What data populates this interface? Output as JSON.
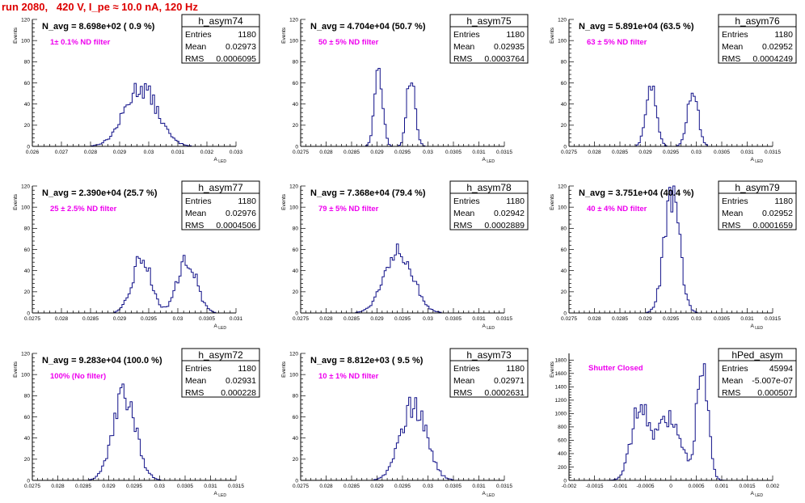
{
  "page_title": "run 2080,   420 V, I_pe ≈ 10.0 nA, 120 Hz",
  "colors": {
    "title": "#dd0000",
    "histogram": "#101088",
    "filter_text": "#ee00ee"
  },
  "chart_data": [
    {
      "type": "histogram",
      "name": "h_asym74",
      "navg": "N_avg = 8.698e+02 ( 0.9 %)",
      "note": "1± 0.1% ND filter",
      "stats": {
        "entries": "1180",
        "mean": "0.02973",
        "rms": "0.0006095"
      },
      "xlabel": "A_LED",
      "ylabel": "Events",
      "xlim": [
        0.026,
        0.033
      ],
      "ylim": [
        0,
        120
      ],
      "xticks": [
        "0.026",
        "0.027",
        "0.028",
        "0.029",
        "0.03",
        "0.031",
        "0.032",
        "0.033"
      ],
      "yticks": [
        0,
        20,
        40,
        60,
        80,
        100,
        120
      ],
      "peaks": [
        {
          "mu": 0.02973,
          "sigma": 0.00056,
          "amp": 56
        }
      ]
    },
    {
      "type": "histogram",
      "name": "h_asym75",
      "navg": "N_avg = 4.704e+04 (50.7 %)",
      "note": "50 ± 5% ND filter",
      "stats": {
        "entries": "1180",
        "mean": "0.02935",
        "rms": "0.0003764"
      },
      "xlabel": "A_LED",
      "ylabel": "Events",
      "xlim": [
        0.0275,
        0.0315
      ],
      "ylim": [
        0,
        120
      ],
      "xticks": [
        "0.0275",
        "0.028",
        "0.0285",
        "0.029",
        "0.0295",
        "0.03",
        "0.0305",
        "0.031",
        "0.0315"
      ],
      "yticks": [
        0,
        20,
        40,
        60,
        80,
        100,
        120
      ],
      "peaks": [
        {
          "mu": 0.02903,
          "sigma": 8e-05,
          "amp": 68
        },
        {
          "mu": 0.02967,
          "sigma": 8e-05,
          "amp": 68
        }
      ]
    },
    {
      "type": "histogram",
      "name": "h_asym76",
      "navg": "N_avg = 5.891e+04 (63.5 %)",
      "note": "63 ± 5% ND filter",
      "stats": {
        "entries": "1180",
        "mean": "0.02952",
        "rms": "0.0004249"
      },
      "xlabel": "A_LED",
      "ylabel": "Events",
      "xlim": [
        0.0275,
        0.0315
      ],
      "ylim": [
        0,
        120
      ],
      "xticks": [
        "0.0275",
        "0.028",
        "0.0285",
        "0.029",
        "0.0295",
        "0.03",
        "0.0305",
        "0.031",
        "0.0315"
      ],
      "yticks": [
        0,
        20,
        40,
        60,
        80,
        100,
        120
      ],
      "peaks": [
        {
          "mu": 0.02911,
          "sigma": 0.0001,
          "amp": 58
        },
        {
          "mu": 0.02993,
          "sigma": 0.0001,
          "amp": 58
        }
      ]
    },
    {
      "type": "histogram",
      "name": "h_asym77",
      "navg": "N_avg = 2.390e+04 (25.7 %)",
      "note": "25 ± 2.5% ND filter",
      "stats": {
        "entries": "1180",
        "mean": "0.02976",
        "rms": "0.0004506"
      },
      "xlabel": "A_LED",
      "ylabel": "Events",
      "xlim": [
        0.0275,
        0.031
      ],
      "ylim": [
        0,
        120
      ],
      "xticks": [
        "0.0275",
        "0.028",
        "0.0285",
        "0.029",
        "0.0295",
        "0.03",
        "0.0305",
        "0.031"
      ],
      "yticks": [
        0,
        20,
        40,
        60,
        80,
        100,
        120
      ],
      "peaks": [
        {
          "mu": 0.02938,
          "sigma": 0.00016,
          "amp": 52
        },
        {
          "mu": 0.03016,
          "sigma": 0.00016,
          "amp": 52
        }
      ]
    },
    {
      "type": "histogram",
      "name": "h_asym78",
      "navg": "N_avg = 7.368e+04 (79.4 %)",
      "note": "79 ± 5% ND filter",
      "stats": {
        "entries": "1180",
        "mean": "0.02942",
        "rms": "0.0002889"
      },
      "xlabel": "A_LED",
      "ylabel": "Events",
      "xlim": [
        0.0275,
        0.0315
      ],
      "ylim": [
        0,
        120
      ],
      "xticks": [
        "0.0275",
        "0.028",
        "0.0285",
        "0.029",
        "0.0295",
        "0.03",
        "0.0305",
        "0.031",
        "0.0315"
      ],
      "yticks": [
        0,
        20,
        40,
        60,
        80,
        100,
        120
      ],
      "peaks": [
        {
          "mu": 0.02942,
          "sigma": 0.00027,
          "amp": 62
        }
      ]
    },
    {
      "type": "histogram",
      "name": "h_asym79",
      "navg": "N_avg = 3.751e+04 (40.4 %)",
      "note": "40 ± 4% ND filter",
      "stats": {
        "entries": "1180",
        "mean": "0.02952",
        "rms": "0.0001659"
      },
      "xlabel": "A_LED",
      "ylabel": "Events",
      "xlim": [
        0.0275,
        0.0315
      ],
      "ylim": [
        0,
        120
      ],
      "xticks": [
        "0.0275",
        "0.028",
        "0.0285",
        "0.029",
        "0.0295",
        "0.03",
        "0.0305",
        "0.031",
        "0.0315"
      ],
      "yticks": [
        0,
        20,
        40,
        60,
        80,
        100,
        120
      ],
      "peaks": [
        {
          "mu": 0.02952,
          "sigma": 0.00015,
          "amp": 112
        }
      ]
    },
    {
      "type": "histogram",
      "name": "h_asym72",
      "navg": "N_avg = 9.283e+04 (100.0 %)",
      "note": "100% (No filter)",
      "stats": {
        "entries": "1180",
        "mean": "0.02931",
        "rms": "0.000228"
      },
      "xlabel": "A_LED",
      "ylabel": "Events",
      "xlim": [
        0.0275,
        0.0315
      ],
      "ylim": [
        0,
        120
      ],
      "xticks": [
        "0.0275",
        "0.028",
        "0.0285",
        "0.029",
        "0.0295",
        "0.03",
        "0.0305",
        "0.031",
        "0.0315"
      ],
      "yticks": [
        0,
        20,
        40,
        60,
        80,
        100,
        120
      ],
      "peaks": [
        {
          "mu": 0.02931,
          "sigma": 0.00022,
          "amp": 82
        }
      ]
    },
    {
      "type": "histogram",
      "name": "h_asym73",
      "navg": "N_avg = 8.812e+03 ( 9.5 %)",
      "note": "10 ± 1% ND filter",
      "stats": {
        "entries": "1180",
        "mean": "0.02971",
        "rms": "0.0002631"
      },
      "xlabel": "A_LED",
      "ylabel": "Events",
      "xlim": [
        0.0275,
        0.0315
      ],
      "ylim": [
        0,
        120
      ],
      "xticks": [
        "0.0275",
        "0.028",
        "0.0285",
        "0.029",
        "0.0295",
        "0.03",
        "0.0305",
        "0.031",
        "0.0315"
      ],
      "yticks": [
        0,
        20,
        40,
        60,
        80,
        100,
        120
      ],
      "peaks": [
        {
          "mu": 0.02971,
          "sigma": 0.00025,
          "amp": 73
        }
      ]
    },
    {
      "type": "histogram",
      "name": "hPed_asym",
      "navg": "",
      "note": "Shutter Closed",
      "stats": {
        "entries": "45994",
        "mean": "-5.007e-07",
        "rms": "0.000507"
      },
      "xlabel": "A_LED",
      "ylabel": "Events",
      "xlim": [
        -0.002,
        0.002
      ],
      "ylim": [
        0,
        1900
      ],
      "xticks": [
        "-0.002",
        "-0.0015",
        "-0.001",
        "-0.0005",
        "0",
        "0.0005",
        "0.001",
        "0.0015",
        "0.002"
      ],
      "yticks": [
        0,
        200,
        400,
        600,
        800,
        1000,
        1200,
        1400,
        1600,
        1800
      ],
      "peaks": [
        {
          "mu": -0.00062,
          "sigma": 0.00016,
          "amp": 1050
        },
        {
          "mu": -5e-05,
          "sigma": 0.00025,
          "amp": 900
        },
        {
          "mu": 0.00062,
          "sigma": 0.00011,
          "amp": 1650
        }
      ]
    }
  ]
}
